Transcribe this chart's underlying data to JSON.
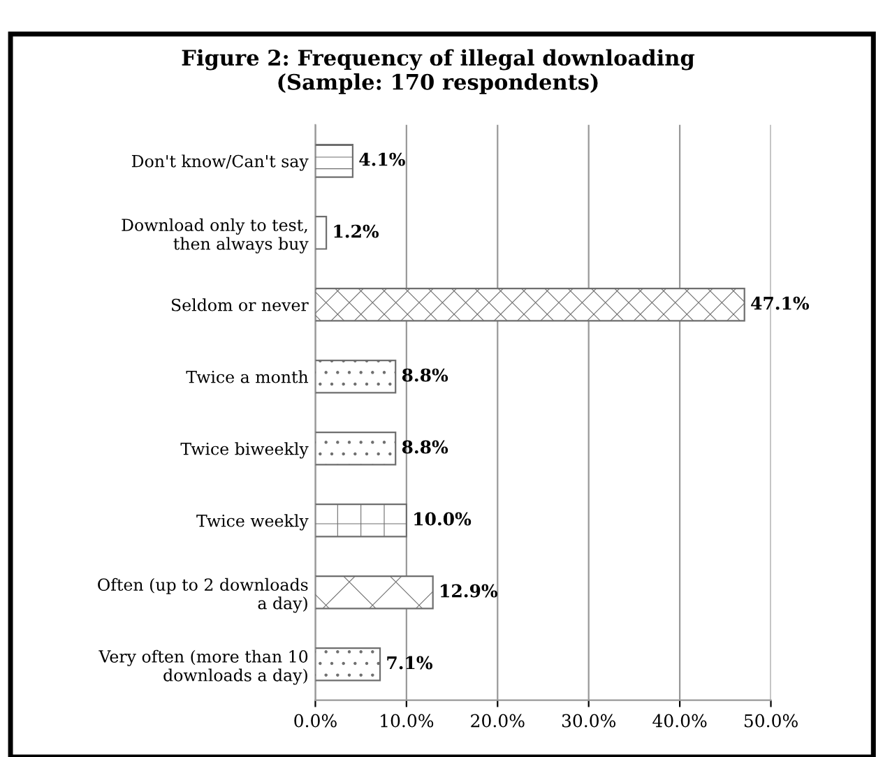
{
  "chart_data": {
    "type": "bar",
    "orientation": "horizontal",
    "title": "Figure 2: Frequency of illegal downloading\n(Sample: 170 respondents)",
    "categories": [
      "Don't know/Can't say",
      "Download only to test, then always buy",
      "Seldom or never",
      "Twice a month",
      "Twice biweekly",
      "Twice weekly",
      "Often (up to 2 downloads a day)",
      "Very often (more than 10 downloads a day)"
    ],
    "values": [
      4.1,
      1.2,
      47.1,
      8.8,
      8.8,
      10.0,
      12.9,
      7.1
    ],
    "value_labels": [
      "4.1%",
      "1.2%",
      "47.1%",
      "8.8%",
      "8.8%",
      "10.0%",
      "12.9%",
      "7.1%"
    ],
    "colors": [
      "#6e6e6e",
      "#6e6e6e",
      "#6e6e6e",
      "#6e6e6e",
      "#6e6e6e",
      "#6e6e6e",
      "#6e6e6e",
      "#6e6e6e"
    ],
    "xlim": [
      0,
      50
    ],
    "xticks": [
      {
        "value": 0,
        "label": "0.0%"
      },
      {
        "value": 10,
        "label": "10.0%"
      },
      {
        "value": 20,
        "label": "20.0%"
      },
      {
        "value": 30,
        "label": "30.0%"
      },
      {
        "value": 40,
        "label": "40.0%"
      },
      {
        "value": 50,
        "label": "50.0%"
      }
    ],
    "grid": "x",
    "legend": false
  }
}
